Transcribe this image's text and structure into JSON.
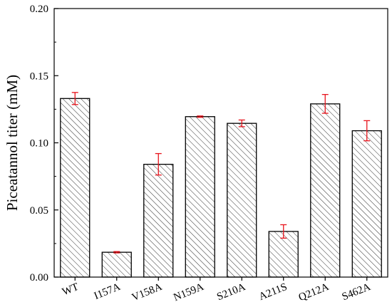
{
  "chart_data": {
    "type": "bar",
    "title": "",
    "xlabel": "",
    "ylabel": "Piceatannol titer (mM)",
    "ylim": [
      0,
      0.2
    ],
    "yticks": [
      "0.00",
      "0.05",
      "0.10",
      "0.15",
      "0.20"
    ],
    "ytick_values": [
      0,
      0.05,
      0.1,
      0.15,
      0.2
    ],
    "categories": [
      "WT",
      "I157A",
      "V158A",
      "N159A",
      "S210A",
      "A211S",
      "Q212A",
      "S462A"
    ],
    "values": [
      0.133,
      0.0185,
      0.084,
      0.1195,
      0.1145,
      0.034,
      0.129,
      0.109
    ],
    "errors": [
      0.0045,
      0.0005,
      0.008,
      0.0005,
      0.0025,
      0.005,
      0.007,
      0.0075
    ],
    "grid": false,
    "bar_pattern": "diagonal-hatch",
    "bar_edge_color": "#000000",
    "error_color": "#e8141c"
  }
}
